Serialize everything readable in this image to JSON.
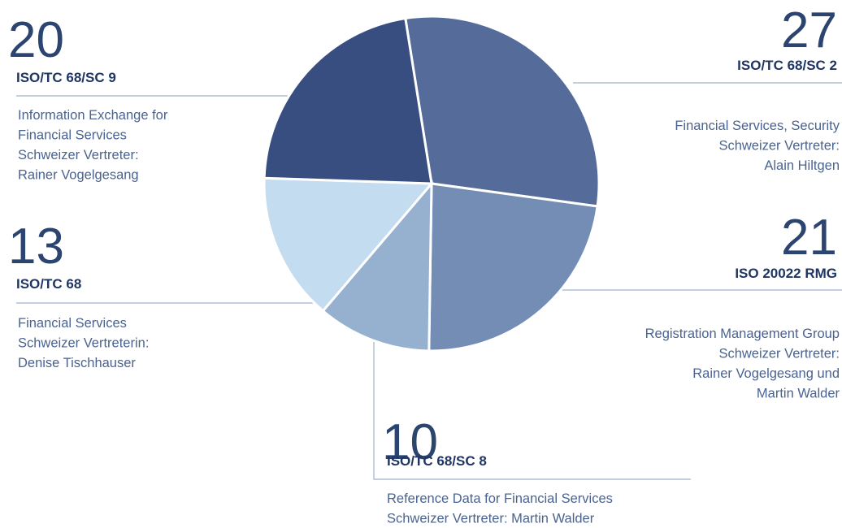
{
  "chart_data": {
    "type": "pie",
    "categories": [
      "ISO/TC 68/SC 2",
      "ISO 20022 RMG",
      "ISO/TC 68/SC 8",
      "ISO/TC 68",
      "ISO/TC 68/SC 9"
    ],
    "values": [
      27,
      21,
      10,
      13,
      20
    ],
    "colors": [
      "#556b99",
      "#748db5",
      "#96b0d0",
      "#c3dcf0",
      "#384e80"
    ],
    "descriptions": [
      [
        "Financial Services, Security",
        "Schweizer Vertreter:",
        "Alain Hiltgen"
      ],
      [
        "Registration Management Group",
        "Schweizer Vertreter:",
        "Rainer Vogelgesang und",
        "Martin Walder"
      ],
      [
        "Reference Data for Financial Services",
        "Schweizer Vertreter: Martin Walder"
      ],
      [
        "Financial Services",
        "Schweizer Vertreterin:",
        "Denise Tischhauser"
      ],
      [
        "Information Exchange for",
        "Financial Services",
        "Schweizer Vertreter:",
        "Rainer Vogelgesang"
      ]
    ]
  }
}
